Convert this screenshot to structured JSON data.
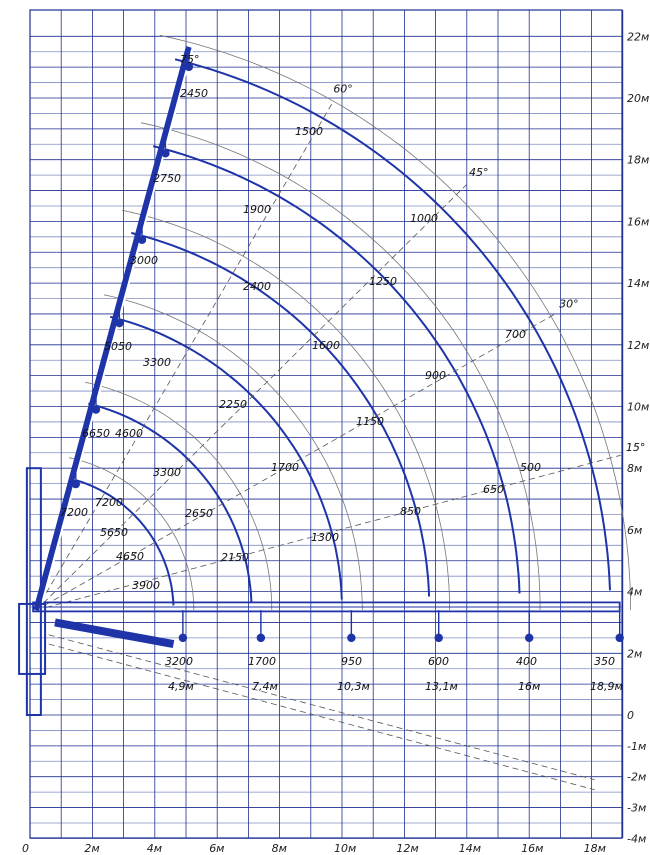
{
  "chart_data": {
    "type": "diagram",
    "x_ticks": [
      {
        "value": 0,
        "label": "0"
      },
      {
        "value": 2,
        "label": "2м"
      },
      {
        "value": 4,
        "label": "4м"
      },
      {
        "value": 6,
        "label": "6м"
      },
      {
        "value": 8,
        "label": "8м"
      },
      {
        "value": 10,
        "label": "10м"
      },
      {
        "value": 12,
        "label": "12м"
      },
      {
        "value": 14,
        "label": "14м"
      },
      {
        "value": 16,
        "label": "16м"
      },
      {
        "value": 18,
        "label": "18м"
      }
    ],
    "y_ticks": [
      {
        "value": 22,
        "label": "22м"
      },
      {
        "value": 20,
        "label": "20м"
      },
      {
        "value": 18,
        "label": "18м"
      },
      {
        "value": 16,
        "label": "16м"
      },
      {
        "value": 14,
        "label": "14м"
      },
      {
        "value": 12,
        "label": "12м"
      },
      {
        "value": 10,
        "label": "10м"
      },
      {
        "value": 8,
        "label": "8м"
      },
      {
        "value": 6,
        "label": "6м"
      },
      {
        "value": 4,
        "label": "4м"
      },
      {
        "value": 2,
        "label": "2м"
      },
      {
        "value": 0,
        "label": "0"
      },
      {
        "value": -1,
        "label": "-1м"
      },
      {
        "value": -2,
        "label": "-2м"
      },
      {
        "value": -3,
        "label": "-3м"
      },
      {
        "value": -4,
        "label": "-4м"
      }
    ],
    "xlim": [
      0,
      19.2
    ],
    "ylim": [
      -4,
      22.7
    ],
    "angles": [
      {
        "label": "75°",
        "deg": 75
      },
      {
        "label": "60°",
        "deg": 60
      },
      {
        "label": "45°",
        "deg": 45
      },
      {
        "label": "30°",
        "deg": 30
      },
      {
        "label": "15°",
        "deg": 15
      }
    ],
    "pivot": {
      "x": 0.2,
      "y": 3.4
    },
    "outer_radii": [
      4.9,
      7.4,
      10.3,
      13.1,
      16.0,
      18.9
    ],
    "sections": [
      {
        "reach_label": "4,9м",
        "reach": 4.9,
        "tip_capacity": "3200",
        "capacities": [
          "3900",
          "4650",
          "5650",
          "7200"
        ]
      },
      {
        "reach_label": "7,4м",
        "reach": 7.4,
        "tip_capacity": "1700",
        "capacities": [
          "2150",
          "2650",
          "3300",
          "4600",
          "6650"
        ]
      },
      {
        "reach_label": "10,3м",
        "reach": 10.3,
        "tip_capacity": "950",
        "capacities": [
          "1300",
          "1700",
          "2250",
          "3300",
          "5050"
        ]
      },
      {
        "reach_label": "13,1м",
        "reach": 13.1,
        "tip_capacity": "600",
        "capacities": [
          "850",
          "1150",
          "1600",
          "2400",
          "3000"
        ]
      },
      {
        "reach_label": "16м",
        "reach": 16.0,
        "tip_capacity": "400",
        "capacities": [
          "650",
          "900",
          "1250",
          "1900",
          "2750"
        ]
      },
      {
        "reach_label": "18,9м",
        "reach": 18.9,
        "tip_capacity": "350",
        "capacities": [
          "500",
          "700",
          "1000",
          "1500",
          "2450"
        ]
      }
    ],
    "extra_capacity": "7200"
  },
  "colors": {
    "grid": "#1e2f8f",
    "boom": "#1e34a8",
    "outer_arc": "#777777",
    "ray": "#555555",
    "text": "#111111"
  }
}
